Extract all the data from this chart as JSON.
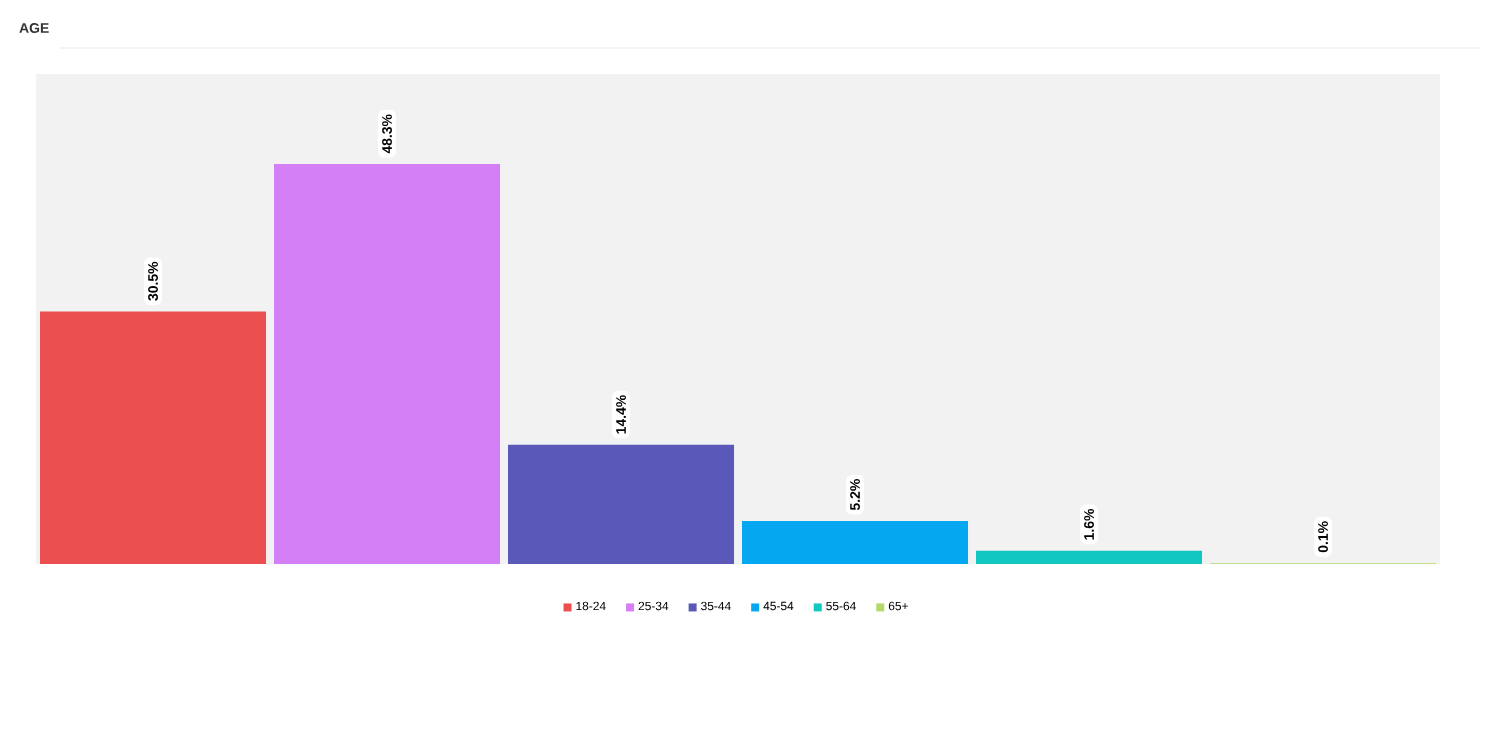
{
  "chart_data": {
    "type": "bar",
    "title": "AGE",
    "categories": [
      null
    ],
    "legend": "bottom",
    "series": [
      {
        "name": "18-24",
        "color": "#eb4f4f",
        "values": [
          30.5
        ],
        "value_labels": [
          "30.5%"
        ]
      },
      {
        "name": "25-34",
        "color": "#d57ff7",
        "values": [
          48.3
        ],
        "value_labels": [
          "48.3%"
        ]
      },
      {
        "name": "35-44",
        "color": "#5a59b9",
        "values": [
          14.4
        ],
        "value_labels": [
          "14.4%"
        ]
      },
      {
        "name": "45-54",
        "color": "#04a7f0",
        "values": [
          5.2
        ],
        "value_labels": [
          "5.2%"
        ]
      },
      {
        "name": "55-64",
        "color": "#12c7c0",
        "values": [
          1.6
        ],
        "value_labels": [
          "1.6%"
        ]
      },
      {
        "name": "65+",
        "color": "#b5d86a",
        "values": [
          0.1
        ],
        "value_labels": [
          "0.1%"
        ]
      }
    ]
  }
}
